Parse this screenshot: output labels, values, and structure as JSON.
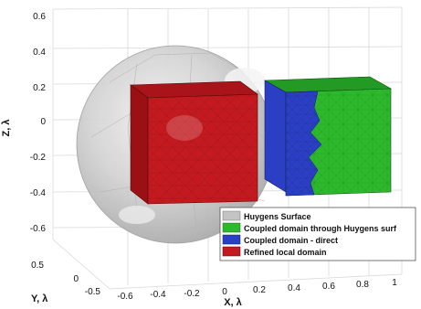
{
  "colors": {
    "sphere": "#c4c4c4",
    "refined": "#c21a1f",
    "coupled_huygens": "#2db82d",
    "coupled_direct": "#2a3fc4",
    "grid": "#d8d8d8"
  },
  "axes": {
    "x_label": "X, λ",
    "y_label": "Y, λ",
    "z_label": "Z, λ",
    "x_ticks": [
      "-0.6",
      "-0.4",
      "-0.2",
      "0",
      "0.2",
      "0.4",
      "0.6",
      "0.8",
      "1"
    ],
    "y_ticks": [
      "0.5",
      "0",
      "-0.5"
    ],
    "z_ticks": [
      "0.6",
      "0.4",
      "0.2",
      "0",
      "-0.2",
      "-0.4",
      "-0.6"
    ]
  },
  "legend": [
    {
      "label": "Huygens Surface",
      "color": "#c4c4c4"
    },
    {
      "label": "Coupled domain through Huygens surf",
      "color": "#2db82d"
    },
    {
      "label": "Coupled domain - direct",
      "color": "#2a3fc4"
    },
    {
      "label": "Refined local domain",
      "color": "#c21a1f"
    }
  ]
}
